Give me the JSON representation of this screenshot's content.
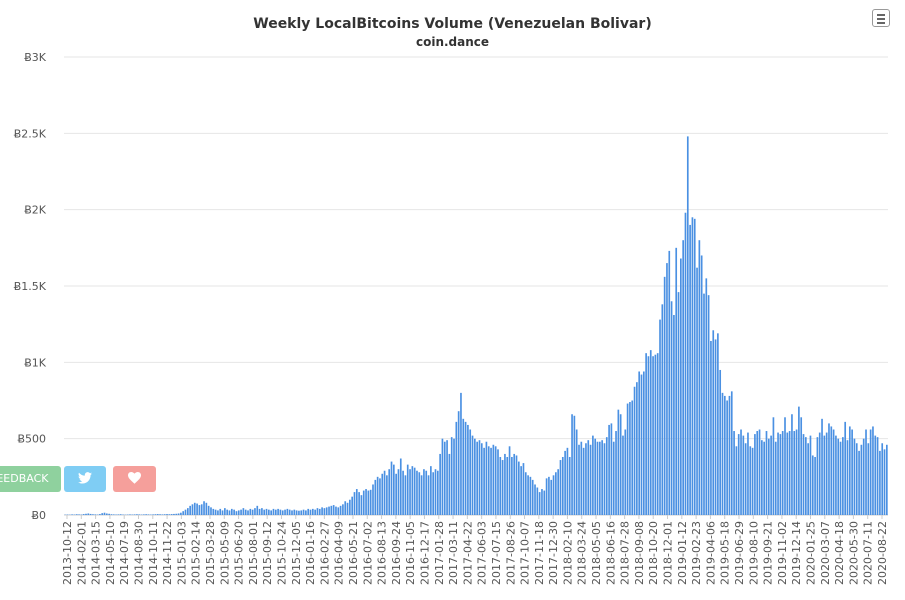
{
  "header": {
    "title": "Weekly LocalBitcoins Volume (Venezuelan Bolivar)",
    "subtitle": "coin.dance"
  },
  "buttons": {
    "feedback_label": "FEEDBACK",
    "twitter_icon": "twitter-icon",
    "heart_icon": "heart-icon",
    "menu_icon": "hamburger-menu-icon"
  },
  "colors": {
    "bar": "#4a90e2",
    "grid": "#e6e6e6",
    "feedback": "#8fd19e",
    "twitter": "#7fcdf4",
    "heart": "#f59f9b"
  },
  "chart_data": {
    "type": "bar",
    "title": "Weekly LocalBitcoins Volume (Venezuelan Bolivar)",
    "subtitle": "coin.dance",
    "ylim": [
      0,
      3000
    ],
    "y_ticks": [
      {
        "value": 0,
        "label": "Ƀ0"
      },
      {
        "value": 500,
        "label": "Ƀ500"
      },
      {
        "value": 1000,
        "label": "Ƀ1K"
      },
      {
        "value": 1500,
        "label": "Ƀ1.5K"
      },
      {
        "value": 2000,
        "label": "Ƀ2K"
      },
      {
        "value": 2500,
        "label": "Ƀ2.5K"
      },
      {
        "value": 3000,
        "label": "Ƀ3K"
      }
    ],
    "x_tick_labels": [
      "2013-10-12",
      "2014-02-01",
      "2014-03-15",
      "2014-05-10",
      "2014-07-19",
      "2014-08-30",
      "2014-10-11",
      "2014-11-22",
      "2015-01-03",
      "2015-02-14",
      "2015-03-28",
      "2015-05-09",
      "2015-06-20",
      "2015-08-01",
      "2015-09-12",
      "2015-10-24",
      "2015-12-05",
      "2016-01-16",
      "2016-02-27",
      "2016-04-09",
      "2016-05-21",
      "2016-07-02",
      "2016-08-13",
      "2016-09-24",
      "2016-11-05",
      "2016-12-17",
      "2017-01-28",
      "2017-03-11",
      "2017-04-22",
      "2017-06-03",
      "2017-07-15",
      "2017-08-26",
      "2017-10-07",
      "2017-11-18",
      "2017-12-30",
      "2018-02-10",
      "2018-03-24",
      "2018-05-05",
      "2018-06-16",
      "2018-07-28",
      "2018-09-08",
      "2018-10-20",
      "2018-12-01",
      "2019-01-12",
      "2019-02-23",
      "2019-04-06",
      "2019-05-18",
      "2019-06-29",
      "2019-08-10",
      "2019-09-21",
      "2019-11-02",
      "2019-12-14",
      "2020-01-25",
      "2020-03-07",
      "2020-04-18",
      "2020-05-30",
      "2020-07-11",
      "2020-08-22"
    ],
    "values": [
      2,
      3,
      2,
      4,
      3,
      5,
      4,
      3,
      6,
      8,
      10,
      7,
      5,
      4,
      3,
      6,
      12,
      15,
      10,
      8,
      5,
      4,
      3,
      4,
      5,
      3,
      2,
      3,
      4,
      3,
      4,
      5,
      4,
      3,
      4,
      5,
      4,
      3,
      4,
      5,
      6,
      5,
      4,
      5,
      6,
      5,
      6,
      7,
      8,
      10,
      15,
      25,
      35,
      45,
      60,
      70,
      80,
      75,
      65,
      70,
      90,
      80,
      60,
      50,
      40,
      35,
      30,
      40,
      30,
      45,
      35,
      30,
      40,
      35,
      25,
      30,
      35,
      45,
      35,
      30,
      40,
      35,
      45,
      60,
      40,
      45,
      35,
      40,
      35,
      30,
      40,
      35,
      40,
      35,
      30,
      35,
      40,
      35,
      30,
      35,
      30,
      28,
      30,
      35,
      30,
      40,
      35,
      40,
      35,
      45,
      40,
      50,
      45,
      50,
      55,
      60,
      65,
      55,
      50,
      60,
      70,
      90,
      80,
      100,
      120,
      150,
      170,
      150,
      130,
      160,
      170,
      160,
      165,
      200,
      230,
      250,
      240,
      270,
      290,
      260,
      300,
      350,
      330,
      270,
      300,
      370,
      290,
      260,
      330,
      300,
      320,
      310,
      290,
      280,
      260,
      300,
      290,
      260,
      320,
      280,
      300,
      290,
      400,
      500,
      480,
      490,
      400,
      510,
      500,
      610,
      680,
      800,
      630,
      610,
      590,
      560,
      520,
      500,
      480,
      490,
      470,
      440,
      480,
      450,
      440,
      460,
      450,
      430,
      380,
      360,
      400,
      380,
      450,
      380,
      400,
      390,
      350,
      320,
      340,
      280,
      260,
      250,
      230,
      200,
      180,
      150,
      170,
      160,
      240,
      250,
      230,
      260,
      280,
      300,
      360,
      380,
      420,
      440,
      380,
      660,
      650,
      560,
      460,
      480,
      440,
      470,
      490,
      460,
      520,
      500,
      480,
      480,
      490,
      470,
      510,
      590,
      600,
      480,
      550,
      690,
      660,
      520,
      560,
      730,
      740,
      750,
      840,
      870,
      940,
      920,
      940,
      1060,
      1040,
      1080,
      1040,
      1050,
      1060,
      1280,
      1380,
      1560,
      1650,
      1730,
      1400,
      1310,
      1750,
      1460,
      1680,
      1800,
      1980,
      2480,
      1900,
      1950,
      1940,
      1620,
      1800,
      1700,
      1450,
      1550,
      1440,
      1140,
      1210,
      1150,
      1190,
      950,
      800,
      780,
      750,
      780,
      810,
      550,
      450,
      530,
      560,
      520,
      470,
      540,
      450,
      440,
      530,
      550,
      560,
      490,
      480,
      550,
      500,
      520,
      640,
      480,
      540,
      530,
      550,
      640,
      540,
      550,
      660,
      550,
      560,
      710,
      640,
      530,
      510,
      470,
      520,
      390,
      380,
      510,
      540,
      630,
      520,
      540,
      600,
      580,
      560,
      520,
      500,
      480,
      510,
      610,
      490,
      580,
      560,
      500,
      470,
      420,
      460,
      500,
      560,
      470,
      560,
      580,
      520,
      510,
      420,
      470,
      430,
      460
    ]
  }
}
